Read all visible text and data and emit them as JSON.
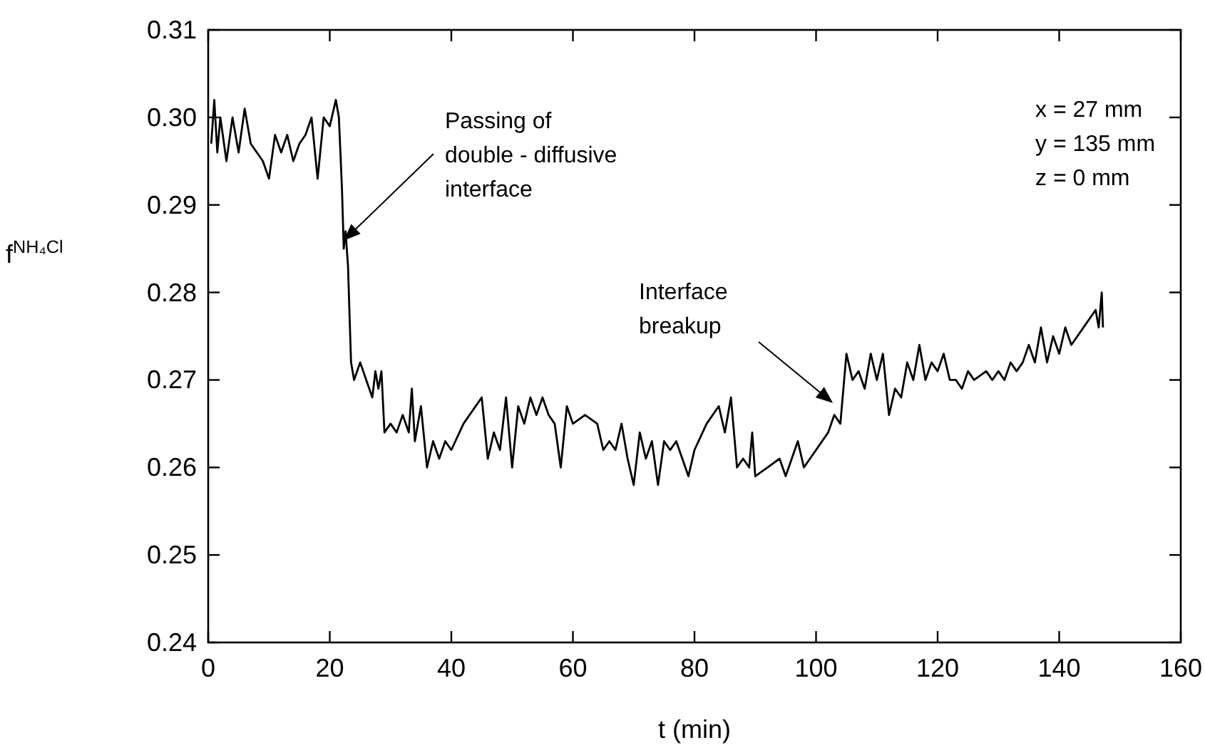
{
  "chart_data": {
    "type": "line",
    "xlabel": "t (min)",
    "ylabel": "f$^{NH₄Cl}$",
    "xlim": [
      0,
      160
    ],
    "xticks": [
      0,
      20,
      40,
      60,
      80,
      100,
      120,
      140,
      160
    ],
    "ylim": [
      0.24,
      0.31
    ],
    "yticks": [
      0.24,
      0.25,
      0.26,
      0.27,
      0.28,
      0.29,
      {
        "value": 0.3,
        "label": "0.30"
      },
      0.31
    ],
    "grid": false,
    "marker": "none",
    "line_style": "solid",
    "annotations": [
      "Passing of\ndouble - diffusive\ninterface",
      "Interface\nbreakup",
      "x = 27 mm",
      "y = 135 mm",
      "z = 0 mm"
    ],
    "series": [
      {
        "color": "#000000",
        "x": [
          0.5,
          1,
          1.5,
          2,
          3,
          4,
          5,
          6,
          7,
          8,
          9,
          10,
          11,
          12,
          13,
          14,
          15,
          16,
          17,
          18,
          19,
          20,
          21,
          21.5,
          22,
          22.3,
          22.6,
          23,
          23.5,
          24,
          25,
          26,
          27,
          27.5,
          28,
          28.5,
          29,
          30,
          31,
          32,
          33,
          33.5,
          34,
          35,
          36,
          37,
          38,
          39,
          40,
          42,
          44,
          45,
          46,
          47,
          48,
          49,
          50,
          51,
          52,
          53,
          54,
          55,
          56,
          57,
          58,
          59,
          60,
          62,
          64,
          65,
          66,
          67,
          68,
          69,
          70,
          71,
          72,
          73,
          74,
          75,
          76,
          77,
          78,
          79,
          80,
          82,
          84,
          85,
          86,
          87,
          88,
          89,
          89.5,
          90,
          92,
          94,
          95,
          96,
          97,
          98,
          100,
          102,
          103,
          104,
          105,
          106,
          107,
          108,
          109,
          110,
          111,
          112,
          113,
          114,
          115,
          116,
          117,
          118,
          119,
          120,
          121,
          122,
          123,
          124,
          125,
          126,
          128,
          129,
          130,
          131,
          132,
          133,
          134,
          135,
          136,
          137,
          138,
          139,
          140,
          141,
          142,
          143,
          145,
          146,
          146.5,
          147,
          147.2
        ],
        "values": [
          0.297,
          0.302,
          0.296,
          0.3,
          0.295,
          0.3,
          0.296,
          0.301,
          0.297,
          0.296,
          0.295,
          0.293,
          0.298,
          0.296,
          0.298,
          0.295,
          0.297,
          0.298,
          0.3,
          0.293,
          0.3,
          0.299,
          0.302,
          0.3,
          0.292,
          0.285,
          0.287,
          0.283,
          0.272,
          0.27,
          0.272,
          0.27,
          0.268,
          0.271,
          0.269,
          0.271,
          0.264,
          0.265,
          0.264,
          0.266,
          0.264,
          0.269,
          0.263,
          0.267,
          0.26,
          0.263,
          0.261,
          0.263,
          0.262,
          0.265,
          0.267,
          0.268,
          0.261,
          0.264,
          0.262,
          0.268,
          0.26,
          0.267,
          0.265,
          0.268,
          0.266,
          0.268,
          0.266,
          0.265,
          0.26,
          0.267,
          0.265,
          0.266,
          0.265,
          0.262,
          0.263,
          0.262,
          0.265,
          0.261,
          0.258,
          0.264,
          0.261,
          0.263,
          0.258,
          0.263,
          0.262,
          0.263,
          0.261,
          0.259,
          0.262,
          0.265,
          0.267,
          0.264,
          0.268,
          0.26,
          0.261,
          0.26,
          0.264,
          0.259,
          0.26,
          0.261,
          0.259,
          0.261,
          0.263,
          0.26,
          0.262,
          0.264,
          0.266,
          0.265,
          0.273,
          0.27,
          0.271,
          0.269,
          0.273,
          0.27,
          0.273,
          0.266,
          0.269,
          0.268,
          0.272,
          0.27,
          0.274,
          0.27,
          0.272,
          0.271,
          0.273,
          0.27,
          0.27,
          0.269,
          0.271,
          0.27,
          0.271,
          0.27,
          0.271,
          0.27,
          0.272,
          0.271,
          0.272,
          0.274,
          0.272,
          0.276,
          0.272,
          0.275,
          0.273,
          0.276,
          0.274,
          0.275,
          0.277,
          0.278,
          0.276,
          0.28,
          0.276
        ]
      }
    ]
  }
}
